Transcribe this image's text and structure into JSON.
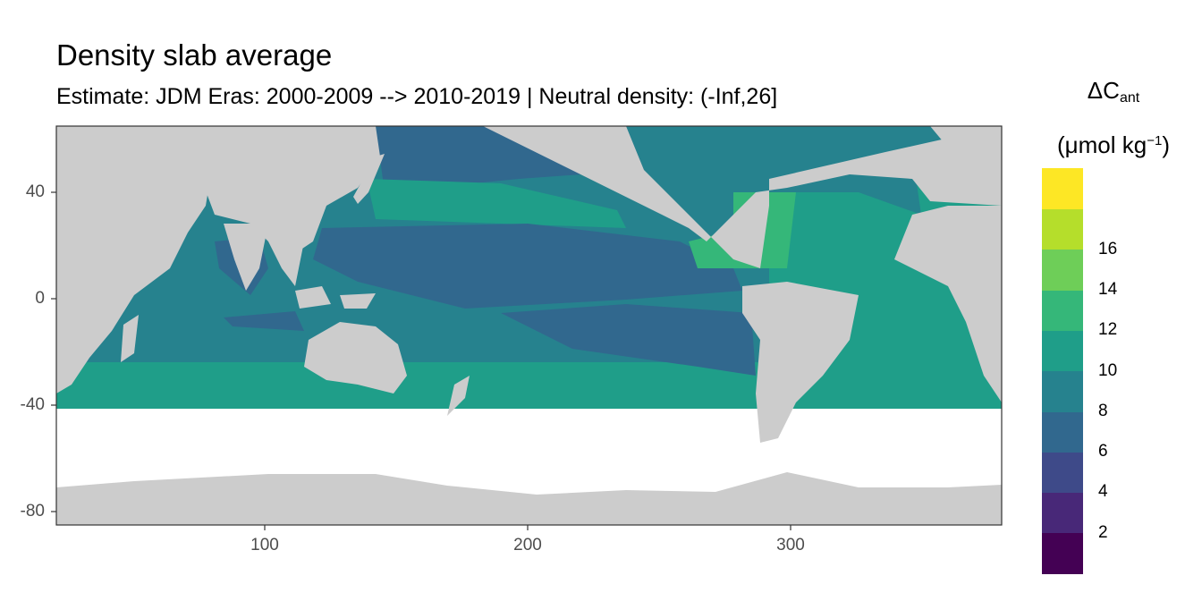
{
  "title": "Density slab average",
  "subtitle": "Estimate: JDM Eras: 2000-2009 --> 2010-2019 | Neutral density: (-Inf,26]",
  "legend": {
    "title_symbol": "ΔC",
    "title_sub": "ant",
    "unit_main": "(μmol kg",
    "unit_sup": "−1",
    "unit_end": ")",
    "breaks": [
      "2",
      "4",
      "6",
      "8",
      "10",
      "12",
      "14",
      "16"
    ],
    "colors": [
      "#440154",
      "#482878",
      "#3e4a89",
      "#31688e",
      "#26828e",
      "#1f9e89",
      "#35b779",
      "#6ece58",
      "#b5de2b",
      "#fde725"
    ]
  },
  "axes": {
    "x_ticks": [
      "100",
      "200",
      "300"
    ],
    "y_ticks": [
      "40",
      "0",
      "-40",
      "-80"
    ],
    "xlim": [
      20,
      380
    ],
    "ylim": [
      -85,
      65
    ]
  },
  "colors": {
    "land": "#cccccc",
    "grid": "#ebebeb",
    "background": "#ffffff",
    "frame": "#333333"
  }
}
